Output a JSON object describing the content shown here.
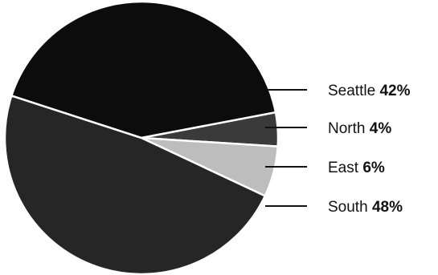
{
  "chart_data": {
    "type": "pie",
    "title": "",
    "slices": [
      {
        "label": "Seattle",
        "pct_label": "42%",
        "value": 42,
        "color": "#0c0c0c"
      },
      {
        "label": "North",
        "pct_label": "4%",
        "value": 4,
        "color": "#3a3a3a"
      },
      {
        "label": "East",
        "pct_label": "6%",
        "value": 6,
        "color": "#bdbdbd"
      },
      {
        "label": "South",
        "pct_label": "48%",
        "value": 48,
        "color": "#262626"
      }
    ],
    "legend": "right"
  }
}
